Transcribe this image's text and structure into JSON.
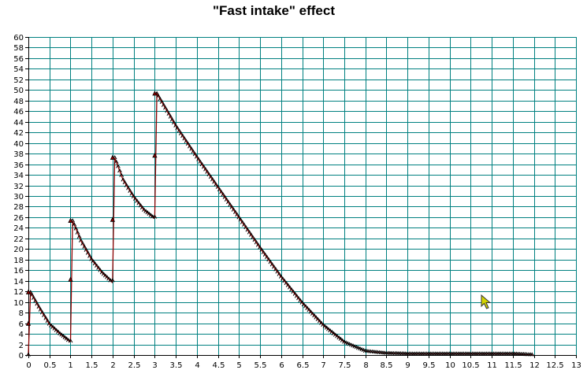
{
  "chart_data": {
    "type": "line",
    "title": "\"Fast intake\" effect",
    "xlabel": "",
    "ylabel": "",
    "xlim": [
      0,
      13
    ],
    "ylim": [
      0,
      60
    ],
    "x_ticks": [
      "0",
      "0.5",
      "1",
      "1.5",
      "2",
      "2.5",
      "3",
      "3.5",
      "4",
      "4.5",
      "5",
      "5.5",
      "6",
      "6.5",
      "7",
      "7.5",
      "8",
      "8.5",
      "9",
      "9.5",
      "10",
      "10.5",
      "11",
      "11.5",
      "12",
      "12.5",
      "13"
    ],
    "y_ticks": [
      "0",
      "2",
      "4",
      "6",
      "8",
      "10",
      "12",
      "14",
      "16",
      "18",
      "20",
      "22",
      "24",
      "26",
      "28",
      "30",
      "32",
      "34",
      "36",
      "38",
      "40",
      "42",
      "44",
      "46",
      "48",
      "50",
      "52",
      "54",
      "56",
      "58",
      "60"
    ],
    "grid": true,
    "legend": "none",
    "series": [
      {
        "color": "#8b0000",
        "marker_color": "#000000",
        "x": [
          0,
          0.05,
          0.25,
          0.5,
          0.75,
          0.99,
          1.0,
          1.05,
          1.25,
          1.5,
          1.75,
          1.99,
          2.0,
          2.05,
          2.25,
          2.5,
          2.75,
          2.99,
          3.0,
          3.05,
          3.5,
          4.0,
          4.5,
          5.0,
          5.5,
          6.0,
          6.5,
          7.0,
          7.5,
          8.0,
          8.5,
          9.0,
          9.5,
          10.0,
          10.5,
          11.0,
          11.5,
          12.0
        ],
        "values": [
          0,
          11.8,
          9.0,
          5.8,
          4.0,
          2.5,
          2.6,
          25.3,
          21.5,
          18.0,
          15.5,
          13.7,
          14.0,
          37.2,
          33.0,
          29.8,
          27.3,
          25.8,
          26.0,
          49.3,
          43.2,
          37.3,
          31.6,
          25.9,
          20.2,
          14.7,
          9.8,
          5.6,
          2.4,
          0.7,
          0.3,
          0.2,
          0.2,
          0.2,
          0.2,
          0.2,
          0.2,
          0
        ]
      }
    ],
    "spikes": [
      {
        "x": 0,
        "top": 11.8,
        "mid": 5.9
      },
      {
        "x": 1,
        "top": 25.3,
        "mid": 14.2
      },
      {
        "x": 2,
        "top": 37.2,
        "mid": 25.5
      },
      {
        "x": 3,
        "top": 49.3,
        "mid": 37.6
      }
    ],
    "colors": {
      "grid": "#008080",
      "axis": "#000000",
      "line": "#8b0000",
      "marker": "#000000",
      "cursor": "#d4d400"
    }
  },
  "cursor": {
    "icon": "mouse-pointer-icon"
  }
}
